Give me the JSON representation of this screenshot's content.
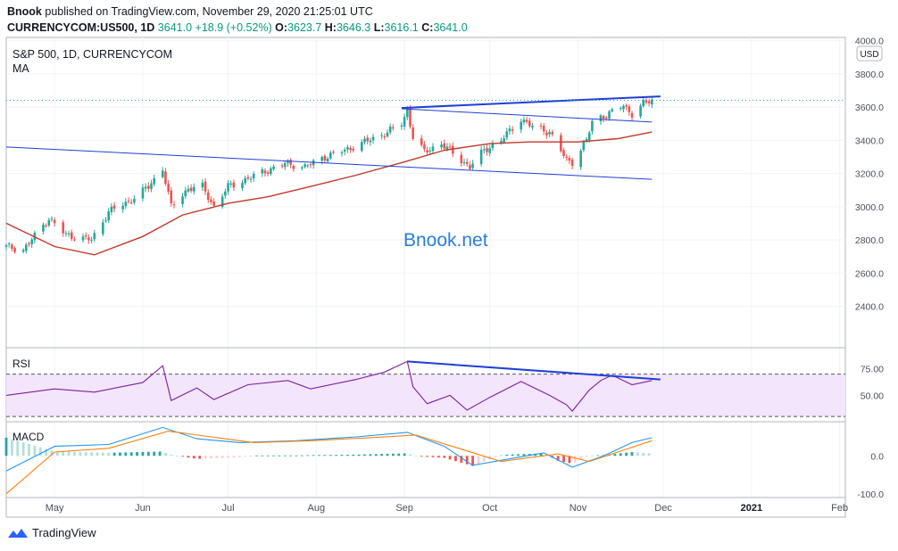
{
  "header": {
    "publisher": "Bnook",
    "published_text": "published on TradingView.com, November 29, 2020 21:25:01 UTC",
    "symbol": "CURRENCYCOM:US500, 1D",
    "last": "3641.0",
    "change": "+18.9 (+0.52%)",
    "open_label": "O:",
    "open": "3623.7",
    "high_label": "H:",
    "high": "3646.3",
    "low_label": "L:",
    "low": "3616.1",
    "close_label": "C:",
    "close": "3641.0"
  },
  "main_pane": {
    "title": "S&P 500, 1D, CURRENCYCOM",
    "indicator": "MA",
    "watermark": "Bnook.net",
    "currency": "USD"
  },
  "rsi_pane": {
    "label": "RSI"
  },
  "macd_pane": {
    "label": "MACD"
  },
  "footer": {
    "brand": "TradingView"
  },
  "colors": {
    "up": "#26a69a",
    "down": "#ef5350",
    "ma": "#c0392b",
    "trendline": "#1f3fd6",
    "rsi": "#7b1fa2",
    "macd": "#2196f3",
    "signal": "#ff7f0e",
    "watermark": "#2a7fd8"
  },
  "chart_data": [
    {
      "type": "candlestick",
      "title": "S&P 500, 1D, CURRENCYCOM",
      "ylim": [
        2150,
        4020
      ],
      "y_ticks": [
        "4000.0",
        "3800.0",
        "3600.0",
        "3400.0",
        "3200.0",
        "3000.0",
        "2800.0",
        "2600.0",
        "2400.0"
      ],
      "x_ticks": [
        "May",
        "Jun",
        "Jul",
        "Aug",
        "Sep",
        "Oct",
        "Nov",
        "Dec",
        "2021",
        "Feb"
      ],
      "x_range": [
        "2020-04-14",
        "2021-02-03"
      ],
      "close_path": [
        [
          "2020-04-14",
          2760
        ],
        [
          "2020-04-20",
          2740
        ],
        [
          "2020-04-29",
          2930
        ],
        [
          "2020-05-05",
          2830
        ],
        [
          "2020-05-14",
          2800
        ],
        [
          "2020-05-20",
          2970
        ],
        [
          "2020-05-27",
          3030
        ],
        [
          "2020-06-03",
          3120
        ],
        [
          "2020-06-08",
          3230
        ],
        [
          "2020-06-11",
          3000
        ],
        [
          "2020-06-17",
          3110
        ],
        [
          "2020-06-22",
          3120
        ],
        [
          "2020-06-26",
          3000
        ],
        [
          "2020-07-01",
          3120
        ],
        [
          "2020-07-08",
          3170
        ],
        [
          "2020-07-15",
          3220
        ],
        [
          "2020-07-21",
          3260
        ],
        [
          "2020-07-28",
          3240
        ],
        [
          "2020-08-04",
          3300
        ],
        [
          "2020-08-11",
          3340
        ],
        [
          "2020-08-18",
          3390
        ],
        [
          "2020-08-25",
          3440
        ],
        [
          "2020-08-31",
          3500
        ],
        [
          "2020-09-02",
          3580
        ],
        [
          "2020-09-04",
          3420
        ],
        [
          "2020-09-08",
          3330
        ],
        [
          "2020-09-14",
          3380
        ],
        [
          "2020-09-21",
          3280
        ],
        [
          "2020-09-24",
          3240
        ],
        [
          "2020-09-29",
          3340
        ],
        [
          "2020-10-05",
          3400
        ],
        [
          "2020-10-12",
          3530
        ],
        [
          "2020-10-16",
          3480
        ],
        [
          "2020-10-22",
          3450
        ],
        [
          "2020-10-28",
          3280
        ],
        [
          "2020-10-30",
          3270
        ],
        [
          "2020-11-04",
          3400
        ],
        [
          "2020-11-06",
          3510
        ],
        [
          "2020-11-09",
          3540
        ],
        [
          "2020-11-13",
          3570
        ],
        [
          "2020-11-17",
          3610
        ],
        [
          "2020-11-20",
          3560
        ],
        [
          "2020-11-24",
          3620
        ],
        [
          "2020-11-27",
          3641
        ]
      ],
      "ma_path": [
        [
          "2020-04-14",
          2900
        ],
        [
          "2020-05-01",
          2760
        ],
        [
          "2020-05-15",
          2710
        ],
        [
          "2020-06-01",
          2820
        ],
        [
          "2020-06-15",
          2950
        ],
        [
          "2020-07-01",
          3020
        ],
        [
          "2020-07-15",
          3060
        ],
        [
          "2020-08-01",
          3130
        ],
        [
          "2020-08-15",
          3190
        ],
        [
          "2020-09-01",
          3270
        ],
        [
          "2020-09-15",
          3340
        ],
        [
          "2020-10-01",
          3380
        ],
        [
          "2020-10-15",
          3390
        ],
        [
          "2020-11-01",
          3390
        ],
        [
          "2020-11-15",
          3410
        ],
        [
          "2020-11-27",
          3450
        ]
      ],
      "last_price": 3641,
      "channel_lines": [
        [
          [
            "2020-04-14",
            3360
          ],
          [
            "2020-11-27",
            3165
          ]
        ],
        [
          [
            "2020-08-31",
            3590
          ],
          [
            "2020-11-27",
            3510
          ]
        ],
        [
          [
            "2020-08-31",
            3595
          ],
          [
            "2020-11-30",
            3665
          ]
        ]
      ]
    },
    {
      "type": "line",
      "title": "RSI",
      "ylim": [
        25,
        95
      ],
      "y_ticks": [
        "75.00",
        "50.00"
      ],
      "levels": [
        70,
        30
      ],
      "path": [
        [
          "2020-04-14",
          50
        ],
        [
          "2020-05-01",
          56
        ],
        [
          "2020-05-15",
          53
        ],
        [
          "2020-06-01",
          62
        ],
        [
          "2020-06-08",
          78
        ],
        [
          "2020-06-11",
          45
        ],
        [
          "2020-06-20",
          57
        ],
        [
          "2020-06-26",
          46
        ],
        [
          "2020-07-08",
          60
        ],
        [
          "2020-07-22",
          64
        ],
        [
          "2020-07-30",
          56
        ],
        [
          "2020-08-15",
          65
        ],
        [
          "2020-08-25",
          72
        ],
        [
          "2020-09-02",
          82
        ],
        [
          "2020-09-04",
          58
        ],
        [
          "2020-09-09",
          42
        ],
        [
          "2020-09-17",
          50
        ],
        [
          "2020-09-23",
          36
        ],
        [
          "2020-10-01",
          48
        ],
        [
          "2020-10-12",
          63
        ],
        [
          "2020-10-22",
          50
        ],
        [
          "2020-10-28",
          41
        ],
        [
          "2020-10-30",
          35
        ],
        [
          "2020-11-05",
          55
        ],
        [
          "2020-11-09",
          64
        ],
        [
          "2020-11-13",
          69
        ],
        [
          "2020-11-20",
          60
        ],
        [
          "2020-11-27",
          64
        ]
      ],
      "trendline": [
        [
          "2020-09-02",
          82
        ],
        [
          "2020-11-30",
          65
        ]
      ]
    },
    {
      "type": "line",
      "title": "MACD",
      "ylim": [
        -110,
        90
      ],
      "y_ticks": [
        "0.0",
        "-100.0"
      ],
      "series": [
        {
          "path": [
            [
              "2020-04-14",
              -40
            ],
            [
              "2020-05-01",
              25
            ],
            [
              "2020-05-20",
              30
            ],
            [
              "2020-06-08",
              75
            ],
            [
              "2020-06-20",
              45
            ],
            [
              "2020-07-05",
              35
            ],
            [
              "2020-07-25",
              40
            ],
            [
              "2020-08-15",
              50
            ],
            [
              "2020-09-02",
              62
            ],
            [
              "2020-09-15",
              25
            ],
            [
              "2020-09-25",
              -25
            ],
            [
              "2020-10-10",
              -5
            ],
            [
              "2020-10-20",
              8
            ],
            [
              "2020-10-30",
              -30
            ],
            [
              "2020-11-10",
              0
            ],
            [
              "2020-11-20",
              35
            ],
            [
              "2020-11-27",
              48
            ]
          ]
        },
        {
          "path": [
            [
              "2020-04-14",
              -100
            ],
            [
              "2020-05-01",
              10
            ],
            [
              "2020-05-20",
              20
            ],
            [
              "2020-06-10",
              65
            ],
            [
              "2020-06-25",
              50
            ],
            [
              "2020-07-10",
              35
            ],
            [
              "2020-07-30",
              40
            ],
            [
              "2020-08-20",
              48
            ],
            [
              "2020-09-05",
              55
            ],
            [
              "2020-09-20",
              20
            ],
            [
              "2020-10-05",
              -15
            ],
            [
              "2020-10-25",
              5
            ],
            [
              "2020-11-05",
              -15
            ],
            [
              "2020-11-15",
              10
            ],
            [
              "2020-11-27",
              40
            ]
          ]
        }
      ]
    }
  ]
}
